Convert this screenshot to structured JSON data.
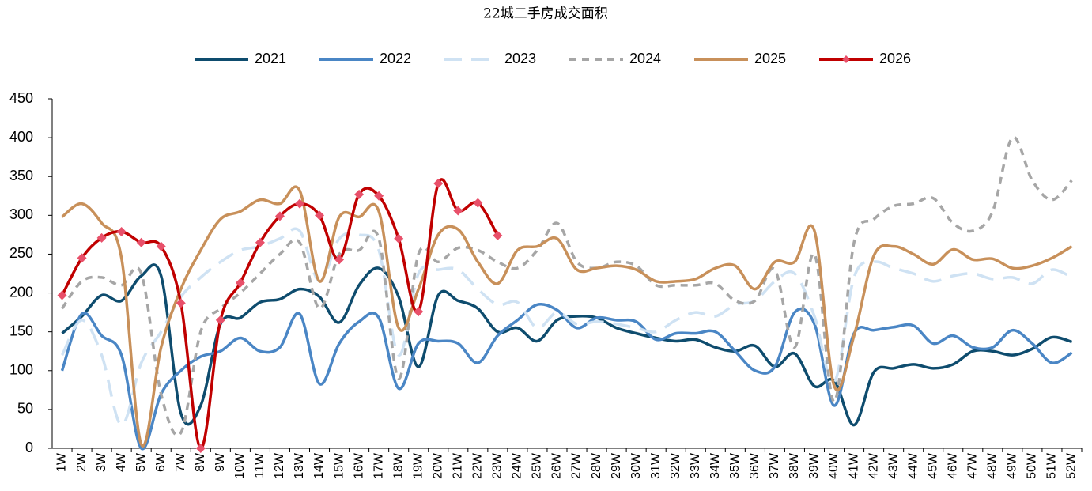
{
  "chart_data": {
    "type": "line",
    "title": "22城二手房成交面积",
    "categories": [
      "1W",
      "2W",
      "3W",
      "4W",
      "5W",
      "6W",
      "7W",
      "8W",
      "9W",
      "10W",
      "11W",
      "12W",
      "13W",
      "14W",
      "15W",
      "16W",
      "17W",
      "18W",
      "19W",
      "20W",
      "21W",
      "22W",
      "23W",
      "24W",
      "25W",
      "26W",
      "27W",
      "28W",
      "29W",
      "30W",
      "31W",
      "32W",
      "33W",
      "34W",
      "35W",
      "36W",
      "37W",
      "38W",
      "39W",
      "40W",
      "41W",
      "42W",
      "43W",
      "44W",
      "45W",
      "46W",
      "47W",
      "48W",
      "49W",
      "50W",
      "51W",
      "52W"
    ],
    "series": [
      {
        "name": "2021",
        "color": "#0e4c6e",
        "values": [
          148,
          170,
          197,
          190,
          222,
          222,
          45,
          55,
          160,
          168,
          188,
          192,
          205,
          195,
          162,
          210,
          232,
          195,
          105,
          197,
          190,
          180,
          150,
          155,
          138,
          165,
          170,
          168,
          155,
          148,
          142,
          138,
          140,
          130,
          125,
          132,
          105,
          122,
          80,
          87,
          30,
          98,
          103,
          108,
          103,
          108,
          125,
          125,
          120,
          128,
          143,
          137
        ]
      },
      {
        "name": "2022",
        "color": "#4a86c5",
        "values": [
          100,
          173,
          145,
          120,
          0,
          70,
          100,
          118,
          125,
          142,
          125,
          130,
          173,
          83,
          135,
          163,
          168,
          77,
          135,
          138,
          135,
          110,
          145,
          165,
          185,
          178,
          155,
          168,
          165,
          163,
          140,
          148,
          148,
          150,
          125,
          100,
          105,
          175,
          160,
          55,
          148,
          152,
          156,
          158,
          135,
          145,
          130,
          130,
          152,
          135,
          110,
          123
        ]
      },
      {
        "name": "2023",
        "color": "#cfe2f3",
        "dash": "long",
        "values": [
          120,
          165,
          120,
          30,
          110,
          150,
          195,
          220,
          240,
          255,
          260,
          270,
          280,
          215,
          270,
          275,
          255,
          120,
          225,
          230,
          230,
          205,
          185,
          188,
          155,
          175,
          160,
          163,
          160,
          155,
          150,
          165,
          175,
          170,
          185,
          190,
          215,
          225,
          170,
          85,
          220,
          240,
          232,
          225,
          215,
          222,
          225,
          218,
          220,
          212,
          230,
          220
        ]
      },
      {
        "name": "2024",
        "color": "#a6a6a6",
        "dash": "short",
        "values": [
          180,
          215,
          220,
          210,
          225,
          70,
          20,
          150,
          180,
          200,
          225,
          250,
          265,
          180,
          250,
          255,
          270,
          90,
          250,
          240,
          258,
          255,
          240,
          232,
          255,
          290,
          240,
          232,
          240,
          235,
          210,
          210,
          210,
          212,
          190,
          190,
          230,
          130,
          250,
          60,
          265,
          295,
          312,
          315,
          322,
          290,
          280,
          305,
          400,
          345,
          320,
          345
        ]
      },
      {
        "name": "2025",
        "color": "#c8905a",
        "values": [
          298,
          315,
          290,
          245,
          5,
          130,
          205,
          255,
          295,
          305,
          320,
          315,
          332,
          215,
          298,
          298,
          305,
          155,
          205,
          275,
          282,
          240,
          212,
          255,
          260,
          270,
          230,
          232,
          235,
          230,
          215,
          215,
          218,
          232,
          235,
          205,
          240,
          240,
          280,
          80,
          145,
          248,
          260,
          250,
          237,
          256,
          243,
          244,
          232,
          235,
          245,
          260
        ]
      },
      {
        "name": "2026",
        "color": "#c00000",
        "marker": "diamond",
        "marker_color": "#e8506a",
        "values": [
          197,
          245,
          271,
          279,
          265,
          260,
          187,
          0,
          165,
          213,
          265,
          299,
          315,
          300,
          243,
          327,
          325,
          270,
          176,
          341,
          306,
          316,
          274,
          null,
          null,
          null,
          null,
          null,
          null,
          null,
          null,
          null,
          null,
          null,
          null,
          null,
          null,
          null,
          null,
          null,
          null,
          null,
          null,
          null,
          null,
          null,
          null,
          null,
          null,
          null,
          null,
          null
        ]
      }
    ],
    "ylim": [
      0,
      450
    ],
    "yticks": [
      0,
      50,
      100,
      150,
      200,
      250,
      300,
      350,
      400,
      450
    ]
  }
}
